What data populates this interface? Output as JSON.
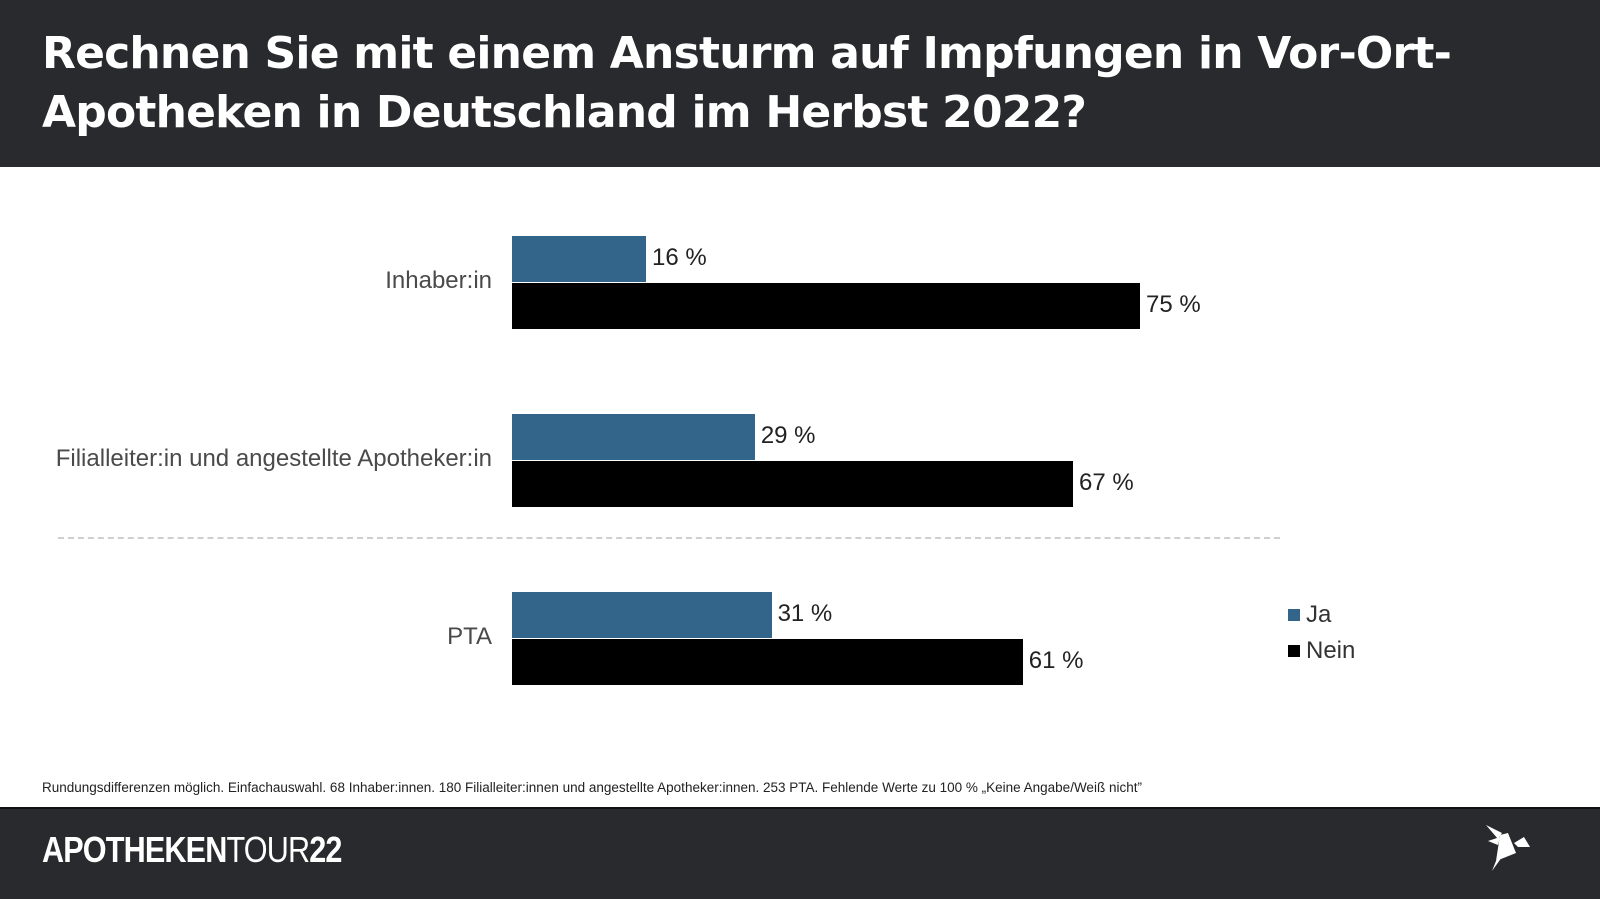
{
  "header": {
    "title": "Rechnen Sie mit einem Ansturm auf Impfungen in Vor-Ort-Apotheken in Deutschland im Herbst 2022?"
  },
  "chart_data": {
    "type": "bar",
    "orientation": "horizontal",
    "title": "Rechnen Sie mit einem Ansturm auf Impfungen in Vor-Ort-Apotheken in Deutschland im Herbst 2022?",
    "categories": [
      "Inhaber:in",
      "Filialleiter:in und angestellte Apotheker:in",
      "PTA"
    ],
    "series": [
      {
        "name": "Ja",
        "color": "#336489",
        "values": [
          16,
          29,
          31
        ]
      },
      {
        "name": "Nein",
        "color": "#000000",
        "values": [
          75,
          67,
          61
        ]
      }
    ],
    "value_suffix": " %",
    "xlim": [
      0,
      100
    ],
    "xlabel": "",
    "ylabel": "",
    "grid": false,
    "legend": "right",
    "divider_after_category": 0
  },
  "footnote": "Rundungsdifferenzen möglich. Einfachauswahl. 68 Inhaber:innen. 180 Filialleiter:innen und angestellte Apotheker:innen. 253 PTA. Fehlende Werte zu 100 % „Keine Angabe/Weiß nicht”",
  "footer": {
    "brand_bold": "APOTHEKEN",
    "brand_light": "TOUR",
    "brand_year": "22",
    "logo_icon": "origami-bird-icon"
  }
}
